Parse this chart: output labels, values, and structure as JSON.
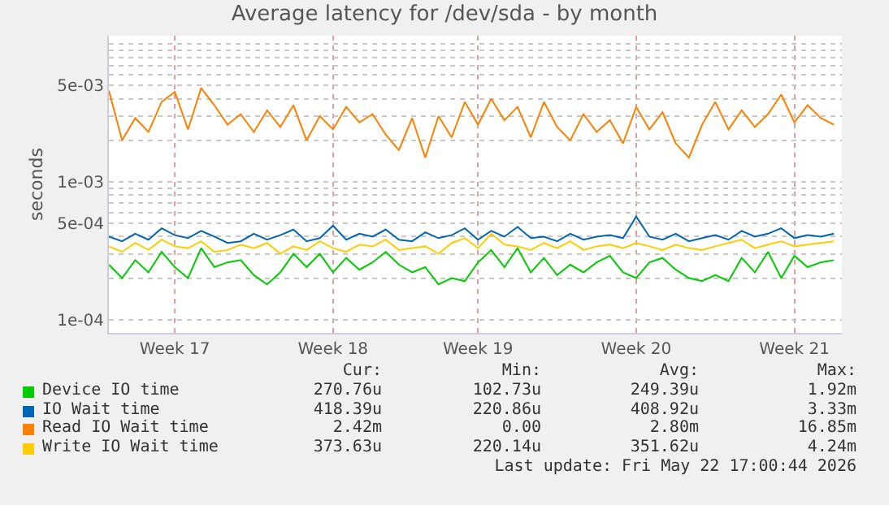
{
  "chart_data": {
    "type": "line",
    "title": "Average latency for /dev/sda - by month",
    "ylabel": "seconds",
    "categories": [
      null,
      null,
      null,
      null,
      null,
      "Week 17",
      null,
      null,
      null,
      null,
      null,
      null,
      null,
      null,
      null,
      null,
      null,
      "Week 18",
      null,
      null,
      null,
      null,
      null,
      null,
      null,
      null,
      null,
      null,
      "Week 19",
      null,
      null,
      null,
      null,
      null,
      null,
      null,
      null,
      null,
      null,
      null,
      "Week 20",
      null,
      null,
      null,
      null,
      null,
      null,
      null,
      null,
      null,
      null,
      null,
      "Week 21",
      null,
      null,
      null
    ],
    "series": [
      {
        "name": "Device IO time",
        "color": "#00cc00",
        "values": [
          0.00025,
          0.0002,
          0.00027,
          0.00022,
          0.00031,
          0.00024,
          0.0002,
          0.00033,
          0.00024,
          0.00026,
          0.00027,
          0.00021,
          0.00018,
          0.00022,
          0.0003,
          0.00024,
          0.0003,
          0.00022,
          0.00028,
          0.00023,
          0.00026,
          0.00031,
          0.00025,
          0.00022,
          0.00024,
          0.00018,
          0.0002,
          0.00019,
          0.00026,
          0.00032,
          0.00024,
          0.00033,
          0.00022,
          0.00028,
          0.00021,
          0.00025,
          0.00022,
          0.00026,
          0.00029,
          0.00022,
          0.0002,
          0.00026,
          0.00028,
          0.00023,
          0.0002,
          0.00019,
          0.00021,
          0.00019,
          0.00028,
          0.00022,
          0.00031,
          0.0002,
          0.00029,
          0.00024,
          0.00026,
          0.00027
        ]
      },
      {
        "name": "IO Wait time",
        "color": "#0066b3",
        "values": [
          0.0004,
          0.00037,
          0.00042,
          0.00038,
          0.00046,
          0.00041,
          0.00039,
          0.00044,
          0.0004,
          0.00036,
          0.00037,
          0.00042,
          0.00038,
          0.00041,
          0.00045,
          0.00037,
          0.00039,
          0.00048,
          0.00038,
          0.00042,
          0.0004,
          0.00045,
          0.00038,
          0.00037,
          0.00043,
          0.00039,
          0.00041,
          0.00046,
          0.00038,
          0.00044,
          0.0004,
          0.00047,
          0.00039,
          0.0004,
          0.00037,
          0.00042,
          0.00038,
          0.0004,
          0.00041,
          0.00039,
          0.00056,
          0.0004,
          0.00038,
          0.00042,
          0.00037,
          0.00039,
          0.00041,
          0.00038,
          0.00044,
          0.0004,
          0.00042,
          0.00046,
          0.00039,
          0.00041,
          0.0004,
          0.00042
        ]
      },
      {
        "name": "Read IO Wait time",
        "color": "#ff8000",
        "values": [
          0.0046,
          0.002,
          0.0029,
          0.0023,
          0.0038,
          0.0045,
          0.0024,
          0.0048,
          0.0036,
          0.0026,
          0.0031,
          0.0023,
          0.0033,
          0.0025,
          0.0036,
          0.002,
          0.003,
          0.0024,
          0.0035,
          0.0027,
          0.0031,
          0.0022,
          0.0017,
          0.0029,
          0.0015,
          0.003,
          0.0021,
          0.0038,
          0.0026,
          0.004,
          0.0028,
          0.0035,
          0.0021,
          0.0038,
          0.0025,
          0.002,
          0.0031,
          0.0023,
          0.0028,
          0.0019,
          0.0035,
          0.0024,
          0.0032,
          0.0019,
          0.0015,
          0.0026,
          0.0038,
          0.0024,
          0.0033,
          0.0025,
          0.0031,
          0.0043,
          0.0027,
          0.0036,
          0.0029,
          0.0026
        ]
      },
      {
        "name": "Write IO Wait time",
        "color": "#ffcc00",
        "values": [
          0.00034,
          0.00031,
          0.00036,
          0.00032,
          0.00038,
          0.00034,
          0.00033,
          0.00037,
          0.00031,
          0.00032,
          0.00035,
          0.00033,
          0.00036,
          0.0003,
          0.00034,
          0.00032,
          0.00037,
          0.00033,
          0.00031,
          0.00035,
          0.00034,
          0.00038,
          0.00032,
          0.00033,
          0.00034,
          0.0003,
          0.00036,
          0.00039,
          0.00033,
          0.00042,
          0.00035,
          0.00034,
          0.00032,
          0.00036,
          0.00033,
          0.00037,
          0.00032,
          0.00034,
          0.00035,
          0.00033,
          0.00036,
          0.00034,
          0.00032,
          0.00035,
          0.00033,
          0.00032,
          0.00034,
          0.00036,
          0.00038,
          0.00033,
          0.00035,
          0.00037,
          0.00034,
          0.00035,
          0.00036,
          0.00037
        ]
      }
    ],
    "ylim": [
      8e-05,
      0.0115
    ],
    "yticks": [
      {
        "value": 0.0001,
        "label": "1e-04"
      },
      {
        "value": 0.0002,
        "label": null
      },
      {
        "value": 0.0003,
        "label": null
      },
      {
        "value": 0.0004,
        "label": null
      },
      {
        "value": 0.0005,
        "label": "5e-04"
      },
      {
        "value": 0.0006,
        "label": null
      },
      {
        "value": 0.0007,
        "label": null
      },
      {
        "value": 0.0008,
        "label": null
      },
      {
        "value": 0.0009,
        "label": null
      },
      {
        "value": 0.001,
        "label": "1e-03"
      },
      {
        "value": 0.002,
        "label": null
      },
      {
        "value": 0.003,
        "label": null
      },
      {
        "value": 0.004,
        "label": null
      },
      {
        "value": 0.005,
        "label": "5e-03"
      },
      {
        "value": 0.006,
        "label": null
      },
      {
        "value": 0.007,
        "label": null
      },
      {
        "value": 0.008,
        "label": null
      },
      {
        "value": 0.009,
        "label": null
      },
      {
        "value": 0.01,
        "label": null
      }
    ],
    "log": "y",
    "grid": true,
    "legend": "bottom",
    "line_style": "solid",
    "marker": "none",
    "annotations": [
      "Cur:",
      "Min:",
      "Avg:",
      "Max:",
      "270.76u",
      "102.73u",
      "249.39u",
      "1.92m",
      "418.39u",
      "220.86u",
      "408.92u",
      "3.33m",
      "2.42m",
      "0.00",
      "2.80m",
      "16.85m",
      "373.63u",
      "220.14u",
      "351.62u",
      "4.24m",
      "Last update: Fri May 22 17:00:44 2026"
    ]
  }
}
